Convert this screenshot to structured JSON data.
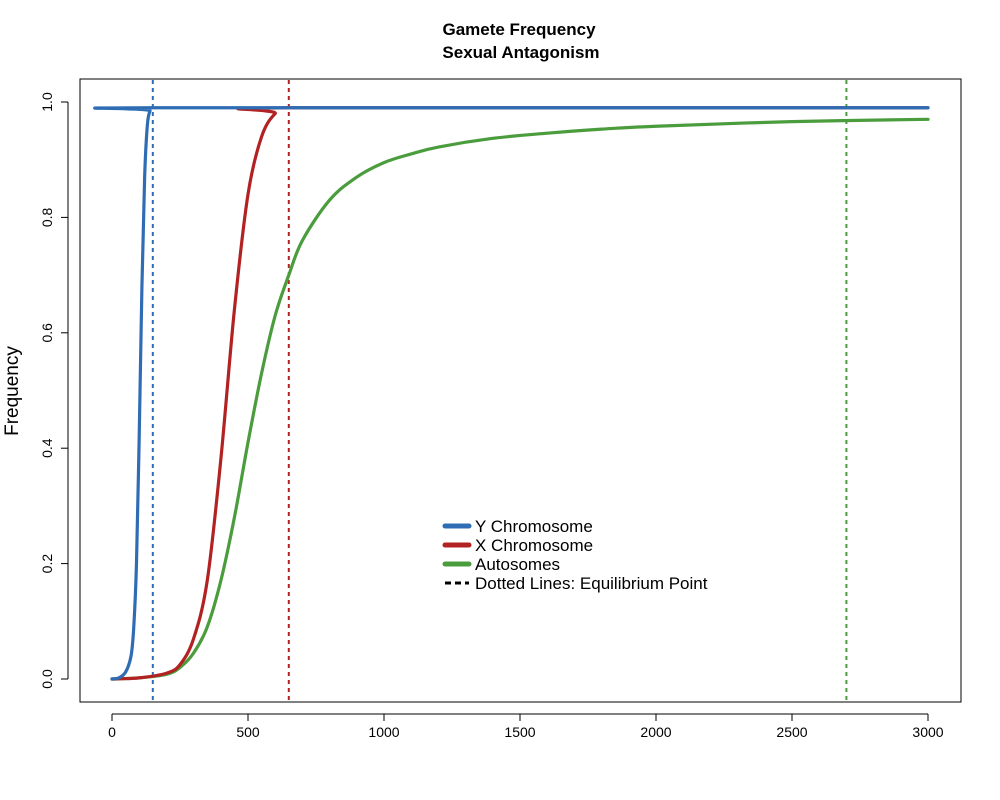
{
  "chart_data": {
    "type": "line",
    "title": "Gamete Frequency",
    "subtitle": "Sexual Antagonism",
    "xlabel": "",
    "ylabel": "Frequency",
    "xlim": [
      0,
      3000
    ],
    "ylim": [
      0,
      1
    ],
    "x_ticks": [
      "0",
      "500",
      "1000",
      "1500",
      "2000",
      "2500",
      "3000"
    ],
    "y_ticks": [
      "0.0",
      "0.2",
      "0.4",
      "0.6",
      "0.8",
      "1.0"
    ],
    "grid": false,
    "legend_position": "center-bottom",
    "series": [
      {
        "name": "Y Chromosome",
        "color": "#2E6DB4",
        "x": [
          0,
          25,
          50,
          70,
          80,
          90,
          100,
          110,
          120,
          130,
          140,
          150,
          3000
        ],
        "y": [
          0.0,
          0.002,
          0.012,
          0.04,
          0.09,
          0.2,
          0.42,
          0.68,
          0.87,
          0.96,
          0.985,
          0.99,
          0.99
        ]
      },
      {
        "name": "X Chromosome",
        "color": "#B22222",
        "x": [
          0,
          100,
          200,
          250,
          300,
          350,
          400,
          450,
          500,
          550,
          600,
          650,
          3000
        ],
        "y": [
          0.0,
          0.002,
          0.01,
          0.025,
          0.07,
          0.17,
          0.38,
          0.64,
          0.84,
          0.94,
          0.98,
          0.99,
          0.99
        ]
      },
      {
        "name": "Autosomes",
        "color": "#4A9C3C",
        "x": [
          0,
          100,
          200,
          250,
          300,
          350,
          400,
          450,
          500,
          550,
          600,
          650,
          700,
          800,
          900,
          1000,
          1100,
          1200,
          1400,
          1600,
          1800,
          2000,
          2500,
          3000
        ],
        "y": [
          0.0,
          0.002,
          0.008,
          0.02,
          0.045,
          0.09,
          0.17,
          0.28,
          0.41,
          0.53,
          0.63,
          0.7,
          0.76,
          0.83,
          0.87,
          0.895,
          0.91,
          0.922,
          0.937,
          0.946,
          0.953,
          0.958,
          0.966,
          0.97
        ]
      }
    ],
    "equilibrium_lines": [
      {
        "x": 150,
        "color": "#2E6DB4"
      },
      {
        "x": 650,
        "color": "#B22222"
      },
      {
        "x": 2700,
        "color": "#4A9C3C"
      }
    ],
    "legend": [
      {
        "label": "Y Chromosome",
        "color": "#2E6DB4",
        "style": "solid"
      },
      {
        "label": "X Chromosome",
        "color": "#B22222",
        "style": "solid"
      },
      {
        "label": "Autosomes",
        "color": "#4A9C3C",
        "style": "solid"
      },
      {
        "label": "Dotted Lines: Equilibrium Point",
        "color": "#000000",
        "style": "dashed"
      }
    ]
  }
}
